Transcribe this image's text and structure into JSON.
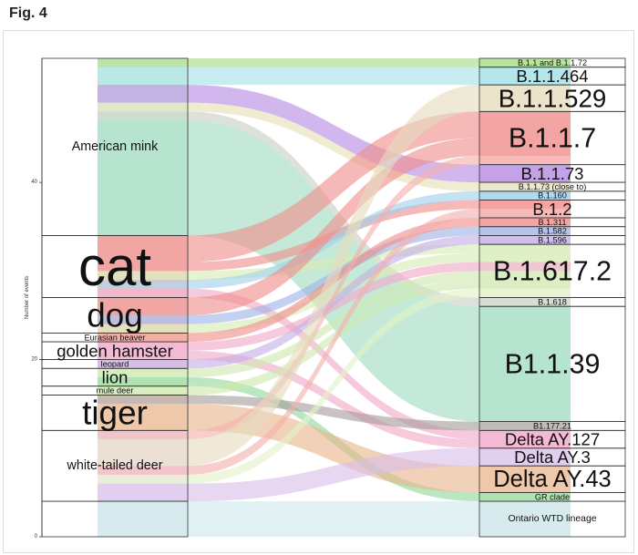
{
  "figure_label": "Fig. 4",
  "chart_data": {
    "type": "alluvial",
    "ylabel": "Number of events",
    "y_ticks": [
      0,
      20,
      40
    ],
    "ylim": [
      0,
      54
    ],
    "hosts": [
      {
        "name": "American mink",
        "count": 20,
        "color": "#bde7d3"
      },
      {
        "name": "cat",
        "count": 7,
        "color": "#f2a6a4"
      },
      {
        "name": "dog",
        "count": 4,
        "color": "#f2a6a4"
      },
      {
        "name": "Eurasian beaver",
        "count": 1,
        "color": "#f6c9a8"
      },
      {
        "name": "golden hamster",
        "count": 2,
        "color": "#f4b6d2"
      },
      {
        "name": "leopard",
        "count": 1,
        "color": "#f4b6d2"
      },
      {
        "name": "lion",
        "count": 2,
        "color": "#d6edb9"
      },
      {
        "name": "mule deer",
        "count": 1,
        "color": "#d6edb9"
      },
      {
        "name": "tiger",
        "count": 4,
        "color": "#f3d2b6"
      },
      {
        "name": "white-tailed deer",
        "count": 8,
        "color": "#e6d4ef"
      },
      {
        "name": "",
        "count": 4,
        "color": "#cfe6ea"
      }
    ],
    "lineages": [
      {
        "name": "B.1.1 and B.1.1.72",
        "count": 1,
        "color": "#b8e39a"
      },
      {
        "name": "B.1.1.464",
        "count": 2,
        "color": "#a5e2e6"
      },
      {
        "name": "B.1.1.529",
        "count": 3,
        "color": "#e9e0c6"
      },
      {
        "name": "B.1.1.7",
        "count": 6,
        "color": "#f4a09e"
      },
      {
        "name": "B.1.1.73",
        "count": 2,
        "color": "#c49be8"
      },
      {
        "name": "B.1.1.73 (close to)",
        "count": 1,
        "color": "#eaeaf2"
      },
      {
        "name": "B.1.160",
        "count": 1,
        "color": "#a9d8ec"
      },
      {
        "name": "B.1.2",
        "count": 2,
        "color": "#f4a09e"
      },
      {
        "name": "B.1.311",
        "count": 1,
        "color": "#f4a09e"
      },
      {
        "name": "B.1.582",
        "count": 1,
        "color": "#b9c0ec"
      },
      {
        "name": "B.1.596",
        "count": 1,
        "color": "#c9b9ec"
      },
      {
        "name": "B.1.617.2",
        "count": 6,
        "color": "#e4f2c8"
      },
      {
        "name": "B.1.618",
        "count": 1,
        "color": "#e9e9e9"
      },
      {
        "name": "B1.1.39",
        "count": 13,
        "color": "#bde7d3"
      },
      {
        "name": "B1.177.21",
        "count": 1,
        "color": "#dedede"
      },
      {
        "name": "Delta AY.127",
        "count": 2,
        "color": "#f4b6d2"
      },
      {
        "name": "Delta AY.3",
        "count": 2,
        "color": "#e6d4ef"
      },
      {
        "name": "Delta AY.43",
        "count": 3,
        "color": "#f3d2b6"
      },
      {
        "name": "GR clade",
        "count": 1,
        "color": "#d6edb9"
      },
      {
        "name": "Ontario WTD lineage",
        "count": 4,
        "color": "#cfe6ea"
      }
    ],
    "flows": [
      {
        "host": "American mink",
        "lineage": "B.1.1 and B.1.1.72",
        "count": 1,
        "color": "#a8dc86"
      },
      {
        "host": "American mink",
        "lineage": "B.1.1.464",
        "count": 2,
        "color": "#a5e2e6"
      },
      {
        "host": "American mink",
        "lineage": "B.1.1.73",
        "count": 2,
        "color": "#b48be2"
      },
      {
        "host": "American mink",
        "lineage": "B.1.1.73 (close to)",
        "count": 1,
        "color": "#e6e0b6"
      },
      {
        "host": "American mink",
        "lineage": "B.1.618",
        "count": 1,
        "color": "#c9cfc2"
      },
      {
        "host": "American mink",
        "lineage": "B1.1.39",
        "count": 13,
        "color": "#9fdcc0"
      },
      {
        "host": "cat",
        "lineage": "B.1.1.7",
        "count": 3,
        "color": "#ef8e8b"
      },
      {
        "host": "cat",
        "lineage": "B.1.2",
        "count": 1,
        "color": "#ef8e8b"
      },
      {
        "host": "cat",
        "lineage": "B.1.617.2",
        "count": 1,
        "color": "#d6ecb4"
      },
      {
        "host": "cat",
        "lineage": "B.1.160",
        "count": 1,
        "color": "#9fd0ea"
      },
      {
        "host": "cat",
        "lineage": "Delta AY.127",
        "count": 1,
        "color": "#f0a8c8"
      },
      {
        "host": "dog",
        "lineage": "B.1.1.7",
        "count": 2,
        "color": "#ef8e8b"
      },
      {
        "host": "dog",
        "lineage": "B.1.582",
        "count": 1,
        "color": "#9fb3e6"
      },
      {
        "host": "dog",
        "lineage": "B.1.617.2",
        "count": 1,
        "color": "#d6ecb4"
      },
      {
        "host": "Eurasian beaver",
        "lineage": "B.1.311",
        "count": 1,
        "color": "#ef8e8b"
      },
      {
        "host": "golden hamster",
        "lineage": "B.1.617.2",
        "count": 1,
        "color": "#f0a8c8"
      },
      {
        "host": "golden hamster",
        "lineage": "Delta AY.127",
        "count": 1,
        "color": "#f0a8c8"
      },
      {
        "host": "leopard",
        "lineage": "B.1.596",
        "count": 1,
        "color": "#c4aee6"
      },
      {
        "host": "lion",
        "lineage": "B.1.617.2",
        "count": 1,
        "color": "#cfe8b0"
      },
      {
        "host": "lion",
        "lineage": "GR clade",
        "count": 1,
        "color": "#8fd69a"
      },
      {
        "host": "mule deer",
        "lineage": "B.1.617.2",
        "count": 1,
        "color": "#cfe8b0"
      },
      {
        "host": "tiger",
        "lineage": "B1.177.21",
        "count": 1,
        "color": "#a89c9c"
      },
      {
        "host": "tiger",
        "lineage": "Delta AY.43",
        "count": 3,
        "color": "#e9b48a"
      },
      {
        "host": "white-tailed deer",
        "lineage": "B.1.1.7",
        "count": 1,
        "color": "#f3b0ae"
      },
      {
        "host": "white-tailed deer",
        "lineage": "B.1.1.529",
        "count": 3,
        "color": "#e6dcbe"
      },
      {
        "host": "white-tailed deer",
        "lineage": "B.1.2",
        "count": 1,
        "color": "#f3b0ae"
      },
      {
        "host": "white-tailed deer",
        "lineage": "B.1.617.2",
        "count": 1,
        "color": "#e4f2c8"
      },
      {
        "host": "white-tailed deer",
        "lineage": "Delta AY.3",
        "count": 2,
        "color": "#d8bfe8"
      },
      {
        "host": "",
        "lineage": "Ontario WTD lineage",
        "count": 4,
        "color": "#cfe6ea"
      }
    ]
  }
}
